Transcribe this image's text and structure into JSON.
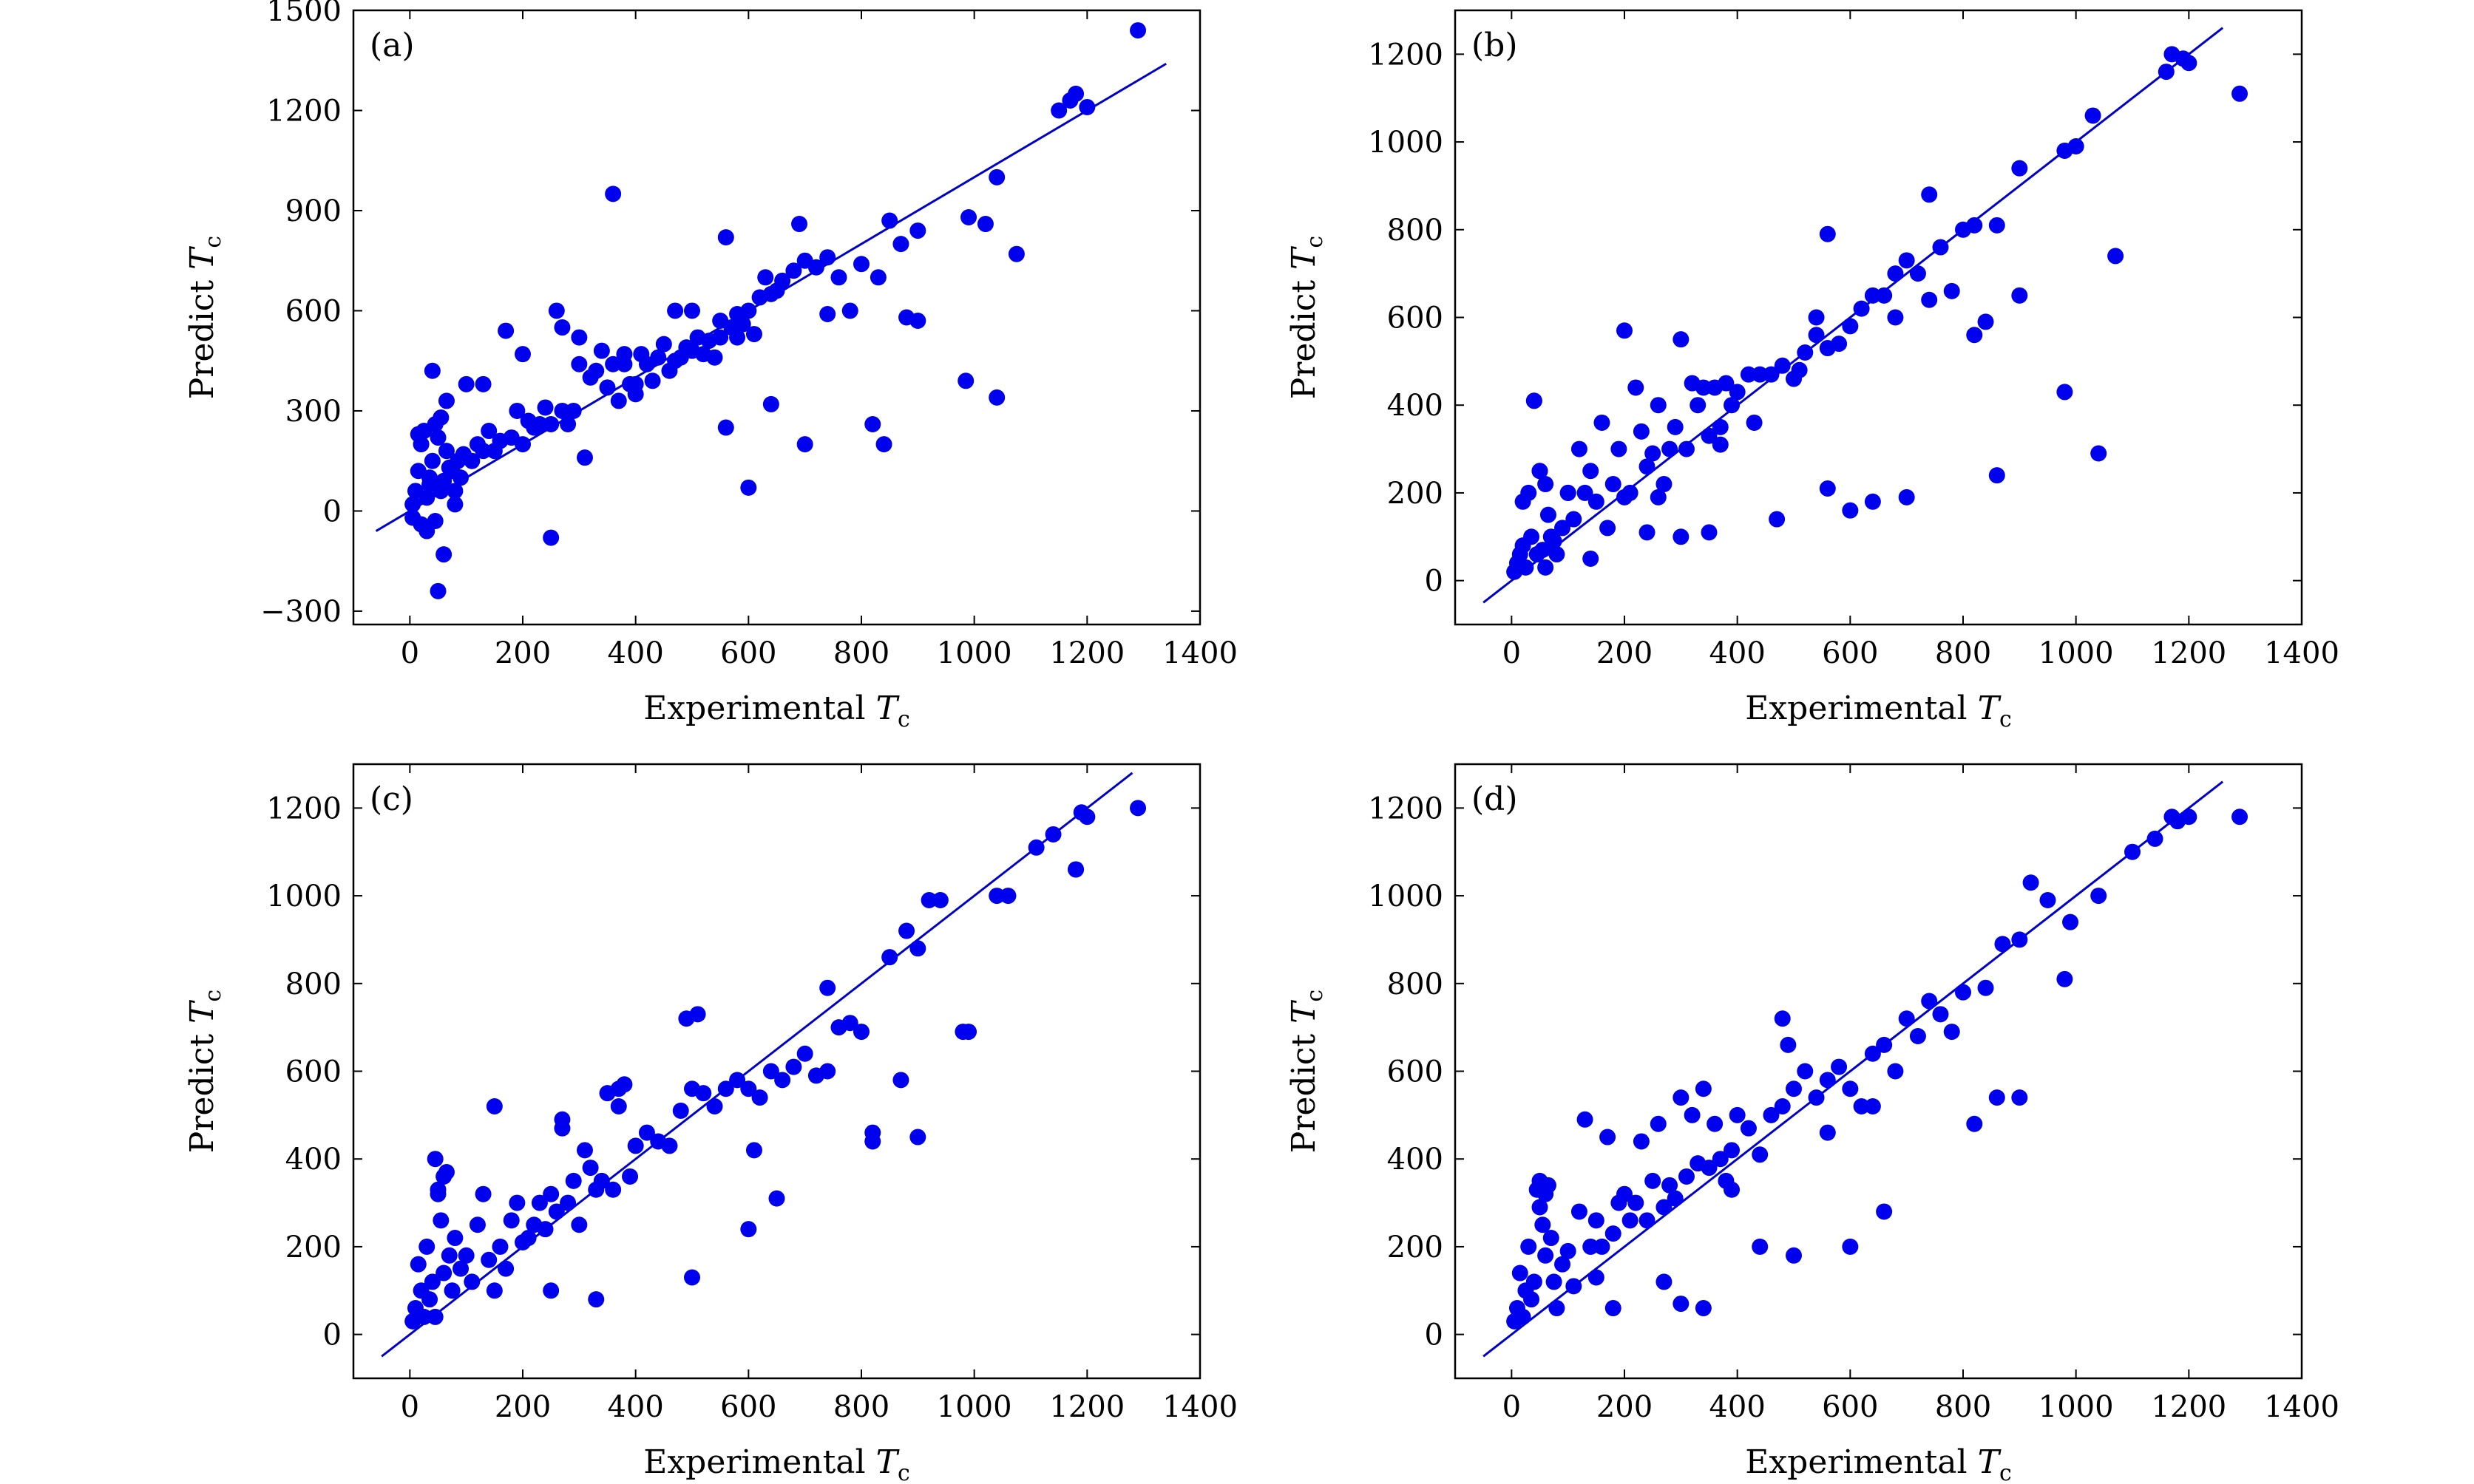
{
  "chart_data": [
    {
      "type": "scatter",
      "panel_label": "(a)",
      "xlabel": "Experimental",
      "ylabel": "Predict",
      "var_symbol": "T",
      "var_subscript": "c",
      "xlim": [
        -100,
        1400
      ],
      "ylim": [
        -340,
        1500
      ],
      "xticks": [
        0,
        200,
        400,
        600,
        800,
        1000,
        1200,
        1400
      ],
      "yticks": [
        -300,
        0,
        300,
        600,
        900,
        1200,
        1500
      ],
      "ytick_labels": [
        "−300",
        "0",
        "300",
        "600",
        "900",
        "1200",
        "1500"
      ],
      "fit_line": [
        [
          -60,
          -60
        ],
        [
          1340,
          1340
        ]
      ],
      "series": [
        {
          "x": [
            5,
            10,
            15,
            20,
            25,
            30,
            35,
            40,
            45,
            50,
            55,
            60,
            65,
            70,
            75,
            80,
            85,
            90,
            95,
            100,
            110,
            120,
            130,
            140,
            150,
            160,
            170,
            180,
            190,
            200,
            210,
            220,
            230,
            240,
            250,
            260,
            270,
            280,
            290,
            300,
            310,
            320,
            330,
            340,
            350,
            360,
            370,
            380,
            390,
            400,
            410,
            420,
            430,
            440,
            450,
            460,
            470,
            480,
            490,
            500,
            510,
            520,
            530,
            540,
            550,
            560,
            570,
            580,
            590,
            600,
            610,
            620,
            630,
            640,
            650,
            660,
            680,
            700,
            720,
            740,
            760,
            780,
            800,
            830,
            850,
            870,
            900,
            990,
            1020,
            1040,
            1075,
            1150,
            1170,
            1180,
            1200,
            1290,
            5,
            20,
            40,
            60,
            80,
            30,
            50,
            250,
            360,
            600,
            700,
            45,
            55,
            985,
            1040,
            200,
            300,
            400,
            500,
            560,
            640,
            820,
            840,
            900,
            130,
            270,
            380,
            470,
            550,
            580,
            690,
            740,
            880,
            15,
            65,
            35
          ],
          "y": [
            20,
            60,
            120,
            200,
            240,
            40,
            100,
            150,
            -30,
            220,
            60,
            90,
            180,
            130,
            120,
            60,
            150,
            100,
            170,
            380,
            150,
            200,
            180,
            240,
            180,
            210,
            540,
            220,
            300,
            200,
            270,
            250,
            260,
            310,
            260,
            600,
            300,
            260,
            300,
            440,
            160,
            400,
            420,
            480,
            370,
            440,
            330,
            470,
            380,
            350,
            470,
            440,
            390,
            460,
            500,
            420,
            450,
            460,
            490,
            480,
            520,
            470,
            510,
            460,
            520,
            820,
            550,
            590,
            560,
            600,
            530,
            640,
            700,
            650,
            660,
            690,
            720,
            750,
            730,
            590,
            700,
            600,
            740,
            700,
            870,
            800,
            840,
            880,
            860,
            1000,
            770,
            1200,
            1230,
            1250,
            1210,
            1440,
            -20,
            -40,
            420,
            -130,
            20,
            -60,
            -240,
            -80,
            950,
            70,
            200,
            260,
            280,
            390,
            340,
            470,
            520,
            380,
            600,
            250,
            320,
            260,
            200,
            570,
            380,
            550,
            440,
            600,
            570,
            520,
            860,
            760,
            580,
            230,
            330,
            80
          ]
        }
      ]
    },
    {
      "type": "scatter",
      "panel_label": "(b)",
      "xlabel": "Experimental",
      "ylabel": "Predict",
      "var_symbol": "T",
      "var_subscript": "c",
      "xlim": [
        -100,
        1400
      ],
      "ylim": [
        -100,
        1300
      ],
      "xticks": [
        0,
        200,
        400,
        600,
        800,
        1000,
        1200,
        1400
      ],
      "yticks": [
        0,
        200,
        400,
        600,
        800,
        1000,
        1200
      ],
      "ytick_labels": [
        "0",
        "200",
        "400",
        "600",
        "800",
        "1000",
        "1200"
      ],
      "fit_line": [
        [
          -50,
          -50
        ],
        [
          1260,
          1260
        ]
      ],
      "series": [
        {
          "x": [
            5,
            10,
            15,
            20,
            25,
            30,
            35,
            40,
            45,
            50,
            55,
            60,
            65,
            70,
            75,
            80,
            90,
            100,
            110,
            120,
            130,
            140,
            150,
            160,
            170,
            180,
            190,
            200,
            210,
            220,
            230,
            240,
            250,
            260,
            270,
            280,
            290,
            300,
            310,
            320,
            330,
            340,
            350,
            360,
            370,
            380,
            390,
            400,
            420,
            440,
            460,
            480,
            500,
            520,
            540,
            560,
            580,
            600,
            620,
            640,
            660,
            680,
            700,
            720,
            740,
            760,
            780,
            800,
            820,
            840,
            860,
            900,
            980,
            1000,
            1030,
            1160,
            1170,
            1190,
            1200,
            1290,
            40,
            60,
            200,
            300,
            350,
            470,
            560,
            600,
            640,
            700,
            860,
            980,
            1040,
            1070,
            820,
            900,
            740,
            680,
            140,
            240,
            20,
            50,
            100,
            260,
            430,
            510,
            560,
            370,
            540
          ],
          "y": [
            20,
            40,
            60,
            80,
            30,
            200,
            100,
            410,
            60,
            250,
            70,
            220,
            150,
            100,
            90,
            60,
            120,
            200,
            140,
            300,
            200,
            250,
            180,
            360,
            120,
            220,
            300,
            570,
            200,
            440,
            340,
            260,
            290,
            400,
            220,
            300,
            350,
            550,
            300,
            450,
            400,
            440,
            330,
            440,
            310,
            450,
            400,
            430,
            470,
            470,
            470,
            490,
            460,
            520,
            560,
            530,
            540,
            580,
            620,
            650,
            650,
            700,
            730,
            700,
            640,
            760,
            660,
            800,
            810,
            590,
            810,
            940,
            980,
            990,
            1060,
            1160,
            1200,
            1190,
            1180,
            1110,
            410,
            30,
            190,
            100,
            110,
            140,
            210,
            160,
            180,
            190,
            240,
            430,
            290,
            740,
            560,
            650,
            880,
            600,
            50,
            110,
            180,
            250,
            200,
            190,
            360,
            480,
            790,
            350,
            600
          ]
        }
      ]
    },
    {
      "type": "scatter",
      "panel_label": "(c)",
      "xlabel": "Experimental",
      "ylabel": "Predict",
      "var_symbol": "T",
      "var_subscript": "c",
      "xlim": [
        -100,
        1400
      ],
      "ylim": [
        -100,
        1300
      ],
      "xticks": [
        0,
        200,
        400,
        600,
        800,
        1000,
        1200,
        1400
      ],
      "yticks": [
        0,
        200,
        400,
        600,
        800,
        1000,
        1200
      ],
      "ytick_labels": [
        "0",
        "200",
        "400",
        "600",
        "800",
        "1000",
        "1200"
      ],
      "fit_line": [
        [
          -50,
          -50
        ],
        [
          1280,
          1280
        ]
      ],
      "series": [
        {
          "x": [
            5,
            10,
            15,
            20,
            25,
            30,
            35,
            40,
            45,
            50,
            55,
            60,
            65,
            70,
            75,
            80,
            90,
            100,
            110,
            120,
            130,
            140,
            150,
            160,
            170,
            180,
            190,
            200,
            210,
            220,
            230,
            240,
            250,
            260,
            270,
            280,
            290,
            300,
            310,
            320,
            330,
            340,
            350,
            360,
            370,
            380,
            390,
            400,
            420,
            440,
            460,
            480,
            500,
            520,
            540,
            560,
            580,
            600,
            620,
            640,
            660,
            680,
            700,
            720,
            740,
            760,
            780,
            800,
            820,
            850,
            870,
            900,
            920,
            940,
            990,
            1040,
            1060,
            1110,
            1140,
            1180,
            1190,
            1200,
            1290,
            45,
            150,
            250,
            330,
            500,
            600,
            650,
            820,
            900,
            980,
            490,
            510,
            740,
            880,
            1180,
            50,
            60,
            270,
            370,
            610
          ],
          "y": [
            30,
            60,
            160,
            100,
            40,
            200,
            80,
            120,
            400,
            330,
            260,
            140,
            370,
            180,
            100,
            220,
            150,
            180,
            120,
            250,
            320,
            170,
            520,
            200,
            150,
            260,
            300,
            210,
            220,
            250,
            300,
            240,
            320,
            280,
            470,
            300,
            350,
            250,
            420,
            380,
            330,
            350,
            550,
            330,
            520,
            570,
            360,
            430,
            460,
            440,
            430,
            510,
            560,
            550,
            520,
            560,
            580,
            560,
            540,
            600,
            580,
            610,
            640,
            590,
            790,
            700,
            710,
            690,
            460,
            860,
            580,
            880,
            990,
            990,
            690,
            1000,
            1000,
            1110,
            1140,
            1060,
            1190,
            1180,
            1200,
            40,
            100,
            100,
            80,
            130,
            240,
            310,
            440,
            450,
            690,
            720,
            730,
            600,
            920,
            1060,
            320,
            360,
            490,
            560,
            420
          ]
        }
      ]
    },
    {
      "type": "scatter",
      "panel_label": "(d)",
      "xlabel": "Experimental",
      "ylabel": "Predict",
      "var_symbol": "T",
      "var_subscript": "c",
      "xlim": [
        -100,
        1400
      ],
      "ylim": [
        -100,
        1300
      ],
      "xticks": [
        0,
        200,
        400,
        600,
        800,
        1000,
        1200,
        1400
      ],
      "yticks": [
        0,
        200,
        400,
        600,
        800,
        1000,
        1200
      ],
      "ytick_labels": [
        "0",
        "200",
        "400",
        "600",
        "800",
        "1000",
        "1200"
      ],
      "fit_line": [
        [
          -50,
          -50
        ],
        [
          1260,
          1260
        ]
      ],
      "series": [
        {
          "x": [
            5,
            10,
            15,
            20,
            25,
            30,
            35,
            40,
            45,
            50,
            55,
            60,
            65,
            70,
            75,
            80,
            90,
            100,
            110,
            120,
            130,
            140,
            150,
            160,
            170,
            180,
            190,
            200,
            210,
            220,
            230,
            240,
            250,
            260,
            270,
            280,
            290,
            300,
            310,
            320,
            330,
            340,
            350,
            360,
            370,
            380,
            390,
            400,
            420,
            440,
            460,
            480,
            500,
            520,
            540,
            560,
            580,
            600,
            620,
            640,
            660,
            680,
            700,
            720,
            740,
            760,
            780,
            800,
            840,
            870,
            900,
            920,
            950,
            980,
            1040,
            1100,
            1140,
            1170,
            1180,
            1200,
            1290,
            150,
            180,
            300,
            340,
            440,
            500,
            600,
            660,
            820,
            860,
            900,
            480,
            490,
            50,
            60,
            270,
            390,
            560,
            640,
            990
          ],
          "y": [
            30,
            60,
            140,
            40,
            100,
            200,
            80,
            120,
            330,
            290,
            250,
            180,
            340,
            220,
            120,
            60,
            160,
            190,
            110,
            280,
            490,
            200,
            260,
            200,
            450,
            230,
            300,
            320,
            260,
            300,
            440,
            260,
            350,
            480,
            290,
            340,
            310,
            540,
            360,
            500,
            390,
            560,
            380,
            480,
            400,
            350,
            420,
            500,
            470,
            410,
            500,
            520,
            560,
            600,
            540,
            580,
            610,
            560,
            520,
            640,
            660,
            600,
            720,
            680,
            760,
            730,
            690,
            780,
            790,
            890,
            900,
            1030,
            990,
            810,
            1000,
            1100,
            1130,
            1180,
            1170,
            1180,
            1180,
            130,
            60,
            70,
            60,
            200,
            180,
            200,
            280,
            480,
            540,
            540,
            720,
            660,
            350,
            320,
            120,
            330,
            460,
            520,
            940
          ]
        }
      ]
    }
  ]
}
